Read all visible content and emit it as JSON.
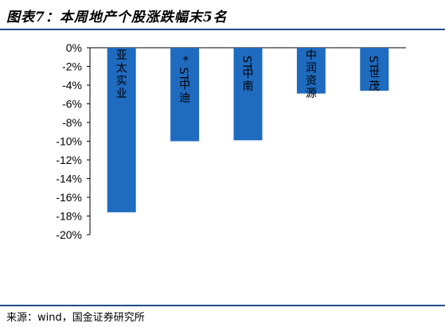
{
  "title": "图表7：本周地产个股涨跌幅末5名",
  "source": "来源：wind，国金证券研究所",
  "colors": {
    "bar": "#1f6bc0",
    "rule": "#1e4e8c",
    "axis": "#000000"
  },
  "chart_data": {
    "type": "bar",
    "orientation": "vertical",
    "categories": [
      "亚太实业",
      "*ST中迪",
      "ST中南",
      "中润资源",
      "ST世茂"
    ],
    "values": [
      -17.6,
      -10.0,
      -9.9,
      -4.9,
      -4.6
    ],
    "unit": "%",
    "ylim": [
      -20,
      0
    ],
    "yticks": [
      "0%",
      "-2%",
      "-4%",
      "-6%",
      "-8%",
      "-10%",
      "-12%",
      "-14%",
      "-16%",
      "-18%",
      "-20%"
    ],
    "grid": false,
    "category_labels_inside_bars": true
  }
}
